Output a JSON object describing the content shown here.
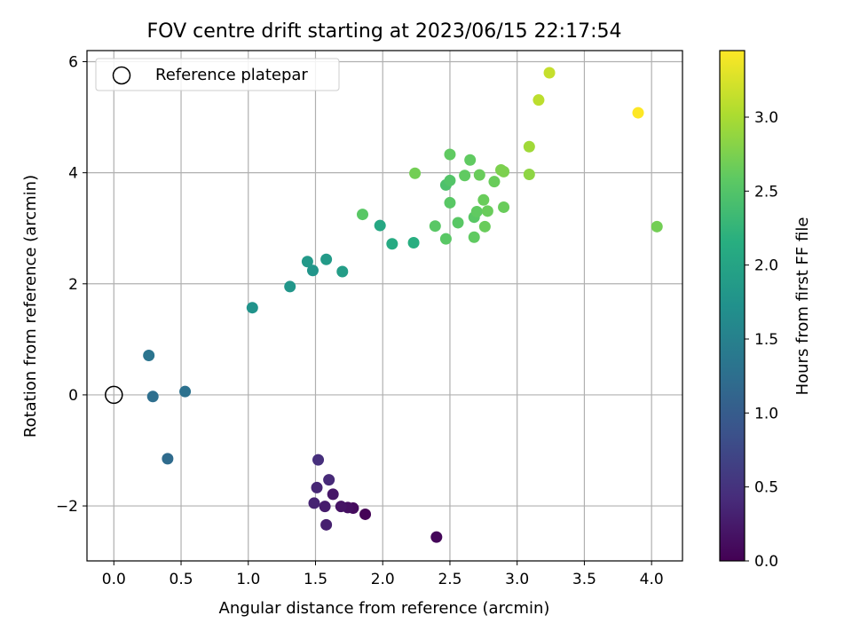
{
  "chart_data": {
    "type": "scatter",
    "title": "FOV centre drift starting at 2023/06/15 22:17:54",
    "xlabel": "Angular distance from reference (arcmin)",
    "ylabel": "Rotation from reference (arcmin)",
    "xlim": [
      -0.2,
      4.23
    ],
    "ylim": [
      -2.99,
      6.2
    ],
    "xticks": [
      0.0,
      0.5,
      1.0,
      1.5,
      2.0,
      2.5,
      3.0,
      3.5,
      4.0
    ],
    "xtick_labels": [
      "0.0",
      "0.5",
      "1.0",
      "1.5",
      "2.0",
      "2.5",
      "3.0",
      "3.5",
      "4.0"
    ],
    "yticks": [
      -2,
      0,
      2,
      4,
      6
    ],
    "ytick_labels": [
      "−2",
      "0",
      "2",
      "4",
      "6"
    ],
    "grid": true,
    "legend": {
      "placement": "upper-left",
      "entries": [
        {
          "label": "Reference platepar",
          "marker": "open-circle"
        }
      ]
    },
    "reference": {
      "x": 0.0,
      "y": 0.0
    },
    "colorbar": {
      "label": "Hours from first FF file",
      "colormap": "viridis",
      "range": [
        0.0,
        3.45
      ],
      "ticks": [
        0.0,
        0.5,
        1.0,
        1.5,
        2.0,
        2.5,
        3.0
      ],
      "tick_labels": [
        "0.0",
        "0.5",
        "1.0",
        "1.5",
        "2.0",
        "2.5",
        "3.0"
      ]
    },
    "points": [
      {
        "x": 1.87,
        "y": -2.15,
        "c": 0.02
      },
      {
        "x": 2.4,
        "y": -2.56,
        "c": 0.05
      },
      {
        "x": 1.78,
        "y": -2.04,
        "c": 0.1
      },
      {
        "x": 1.74,
        "y": -2.03,
        "c": 0.14
      },
      {
        "x": 1.69,
        "y": -2.01,
        "c": 0.18
      },
      {
        "x": 1.63,
        "y": -1.79,
        "c": 0.22
      },
      {
        "x": 1.57,
        "y": -2.01,
        "c": 0.26
      },
      {
        "x": 1.58,
        "y": -2.34,
        "c": 0.3
      },
      {
        "x": 1.49,
        "y": -1.95,
        "c": 0.33
      },
      {
        "x": 1.51,
        "y": -1.67,
        "c": 0.37
      },
      {
        "x": 1.6,
        "y": -1.53,
        "c": 0.4
      },
      {
        "x": 1.52,
        "y": -1.17,
        "c": 0.45
      },
      {
        "x": 0.4,
        "y": -1.15,
        "c": 1.2
      },
      {
        "x": 0.29,
        "y": -0.03,
        "c": 1.25
      },
      {
        "x": 0.53,
        "y": 0.06,
        "c": 1.28
      },
      {
        "x": 0.26,
        "y": 0.71,
        "c": 1.32
      },
      {
        "x": 1.03,
        "y": 1.57,
        "c": 1.75
      },
      {
        "x": 1.31,
        "y": 1.95,
        "c": 1.8
      },
      {
        "x": 1.48,
        "y": 2.24,
        "c": 1.78
      },
      {
        "x": 1.44,
        "y": 2.4,
        "c": 1.84
      },
      {
        "x": 1.58,
        "y": 2.44,
        "c": 1.86
      },
      {
        "x": 1.7,
        "y": 2.22,
        "c": 1.9
      },
      {
        "x": 1.98,
        "y": 3.05,
        "c": 2.05
      },
      {
        "x": 2.07,
        "y": 2.72,
        "c": 2.1
      },
      {
        "x": 2.23,
        "y": 2.74,
        "c": 2.15
      },
      {
        "x": 1.85,
        "y": 3.25,
        "c": 2.55
      },
      {
        "x": 2.24,
        "y": 3.99,
        "c": 2.7
      },
      {
        "x": 2.39,
        "y": 3.04,
        "c": 2.55
      },
      {
        "x": 2.47,
        "y": 2.81,
        "c": 2.55
      },
      {
        "x": 2.5,
        "y": 3.46,
        "c": 2.55
      },
      {
        "x": 2.56,
        "y": 3.1,
        "c": 2.55
      },
      {
        "x": 2.47,
        "y": 3.78,
        "c": 2.45
      },
      {
        "x": 2.5,
        "y": 3.86,
        "c": 2.5
      },
      {
        "x": 2.5,
        "y": 4.33,
        "c": 2.6
      },
      {
        "x": 2.61,
        "y": 3.95,
        "c": 2.6
      },
      {
        "x": 2.65,
        "y": 4.23,
        "c": 2.6
      },
      {
        "x": 2.68,
        "y": 3.2,
        "c": 2.55
      },
      {
        "x": 2.7,
        "y": 3.3,
        "c": 2.6
      },
      {
        "x": 2.68,
        "y": 2.84,
        "c": 2.6
      },
      {
        "x": 2.72,
        "y": 3.96,
        "c": 2.65
      },
      {
        "x": 2.75,
        "y": 3.51,
        "c": 2.65
      },
      {
        "x": 2.76,
        "y": 3.03,
        "c": 2.65
      },
      {
        "x": 2.78,
        "y": 3.31,
        "c": 2.65
      },
      {
        "x": 2.83,
        "y": 3.84,
        "c": 2.65
      },
      {
        "x": 2.88,
        "y": 4.05,
        "c": 2.75
      },
      {
        "x": 2.9,
        "y": 4.02,
        "c": 2.75
      },
      {
        "x": 2.9,
        "y": 3.38,
        "c": 2.65
      },
      {
        "x": 3.09,
        "y": 3.97,
        "c": 2.85
      },
      {
        "x": 3.09,
        "y": 4.47,
        "c": 2.95
      },
      {
        "x": 4.04,
        "y": 3.03,
        "c": 2.7
      },
      {
        "x": 3.16,
        "y": 5.31,
        "c": 3.1
      },
      {
        "x": 3.24,
        "y": 5.8,
        "c": 3.15
      },
      {
        "x": 3.9,
        "y": 5.08,
        "c": 3.45
      }
    ]
  }
}
